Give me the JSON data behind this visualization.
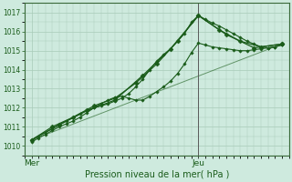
{
  "title": "Pression niveau de la mer( hPa )",
  "xlabel_mer": "Mer",
  "xlabel_jeu": "Jeu",
  "ylim": [
    1009.5,
    1017.5
  ],
  "yticks": [
    1010,
    1011,
    1012,
    1013,
    1014,
    1015,
    1016,
    1017
  ],
  "bg_color": "#ceeade",
  "grid_color": "#a8cbb8",
  "line_color": "#1a5c1a",
  "marker_color": "#1a5c1a",
  "vline_color": "#5a5a5a",
  "mer_x": 0.0,
  "jeu_x": 24.0,
  "xlim": [
    -1.0,
    37.0
  ],
  "line1_x": [
    0,
    1,
    2,
    3,
    4,
    5,
    6,
    7,
    8,
    9,
    10,
    11,
    12,
    13,
    14,
    15,
    16,
    17,
    18,
    19,
    20,
    21,
    22,
    23,
    24,
    25,
    26,
    27,
    28,
    29,
    30,
    31,
    32,
    33,
    34,
    35,
    36
  ],
  "line1_y": [
    1010.3,
    1010.5,
    1010.7,
    1010.9,
    1011.1,
    1011.3,
    1011.5,
    1011.7,
    1011.85,
    1012.0,
    1012.1,
    1012.2,
    1012.35,
    1012.5,
    1012.75,
    1013.1,
    1013.5,
    1014.0,
    1014.45,
    1014.8,
    1015.1,
    1015.5,
    1015.9,
    1016.5,
    1016.85,
    1016.65,
    1016.45,
    1016.3,
    1016.1,
    1015.9,
    1015.7,
    1015.5,
    1015.35,
    1015.2,
    1015.15,
    1015.2,
    1015.3
  ],
  "line2_x": [
    0,
    1,
    2,
    3,
    4,
    5,
    6,
    7,
    8,
    9,
    10,
    11,
    12,
    13,
    14,
    15,
    16,
    17,
    18,
    19,
    20,
    21,
    22,
    23,
    24,
    25,
    26,
    27,
    28,
    29,
    30,
    31,
    32,
    33,
    34,
    35,
    36
  ],
  "line2_y": [
    1010.2,
    1010.4,
    1010.6,
    1010.8,
    1011.0,
    1011.15,
    1011.3,
    1011.5,
    1011.75,
    1012.0,
    1012.2,
    1012.4,
    1012.55,
    1012.6,
    1012.5,
    1012.4,
    1012.4,
    1012.6,
    1012.85,
    1013.1,
    1013.4,
    1013.8,
    1014.3,
    1014.9,
    1015.4,
    1015.3,
    1015.2,
    1015.15,
    1015.1,
    1015.05,
    1015.0,
    1015.0,
    1015.05,
    1015.1,
    1015.15,
    1015.2,
    1015.3
  ],
  "line3_x": [
    0,
    3,
    6,
    9,
    12,
    15,
    18,
    21,
    24,
    27,
    30,
    33,
    36
  ],
  "line3_y": [
    1010.3,
    1011.0,
    1011.5,
    1012.1,
    1012.5,
    1013.3,
    1014.3,
    1015.5,
    1016.85,
    1016.1,
    1015.5,
    1015.2,
    1015.35
  ],
  "line4_x": [
    0,
    4,
    8,
    12,
    16,
    20,
    24,
    28,
    32,
    36
  ],
  "line4_y": [
    1010.3,
    1011.1,
    1011.85,
    1012.4,
    1013.7,
    1015.1,
    1016.85,
    1015.85,
    1015.15,
    1015.35
  ],
  "line5_x": [
    0,
    36
  ],
  "line5_y": [
    1010.3,
    1015.35
  ]
}
